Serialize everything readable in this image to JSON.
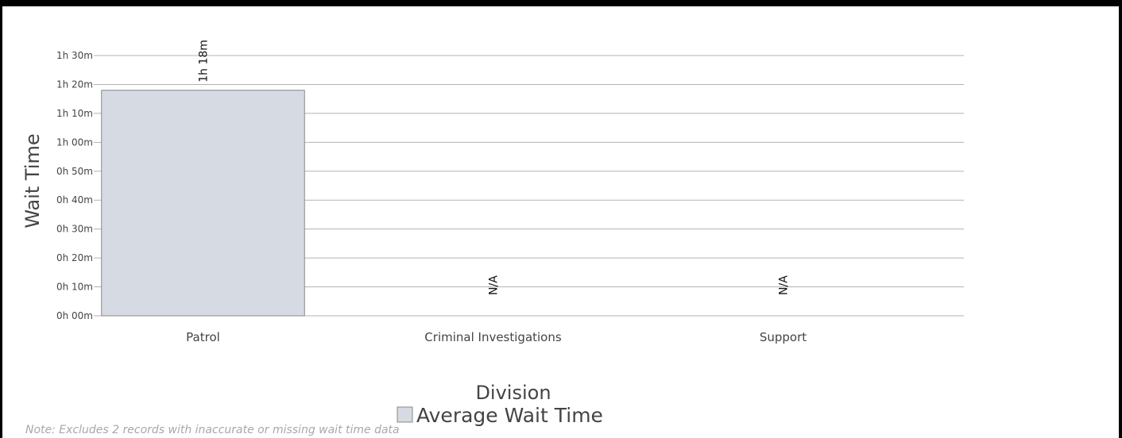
{
  "chart_data": {
    "type": "bar",
    "title": "",
    "xlabel": "Division",
    "ylabel": "Wait Time",
    "categories": [
      "Patrol",
      "Criminal Investigations",
      "Support"
    ],
    "series": [
      {
        "name": "Average Wait Time",
        "values": [
          78,
          null,
          null
        ],
        "data_labels": [
          "1h 18m",
          "N/A",
          "N/A"
        ]
      }
    ],
    "ylim": [
      0,
      90
    ],
    "y_ticks": [
      0,
      10,
      20,
      30,
      40,
      50,
      60,
      70,
      80,
      90
    ],
    "y_tick_labels": [
      "0h 00m",
      "0h 10m",
      "0h 20m",
      "0h 30m",
      "0h 40m",
      "0h 50m",
      "1h 00m",
      "1h 10m",
      "1h 20m",
      "1h 30m"
    ],
    "y_unit": "minutes",
    "grid": true,
    "legend_position": "bottom-center",
    "bar_color": "#d6dae3",
    "bar_border": "#888888",
    "grid_color": "#b3b3b3"
  },
  "note": "Note: Excludes 2 records with inaccurate or missing wait time data"
}
